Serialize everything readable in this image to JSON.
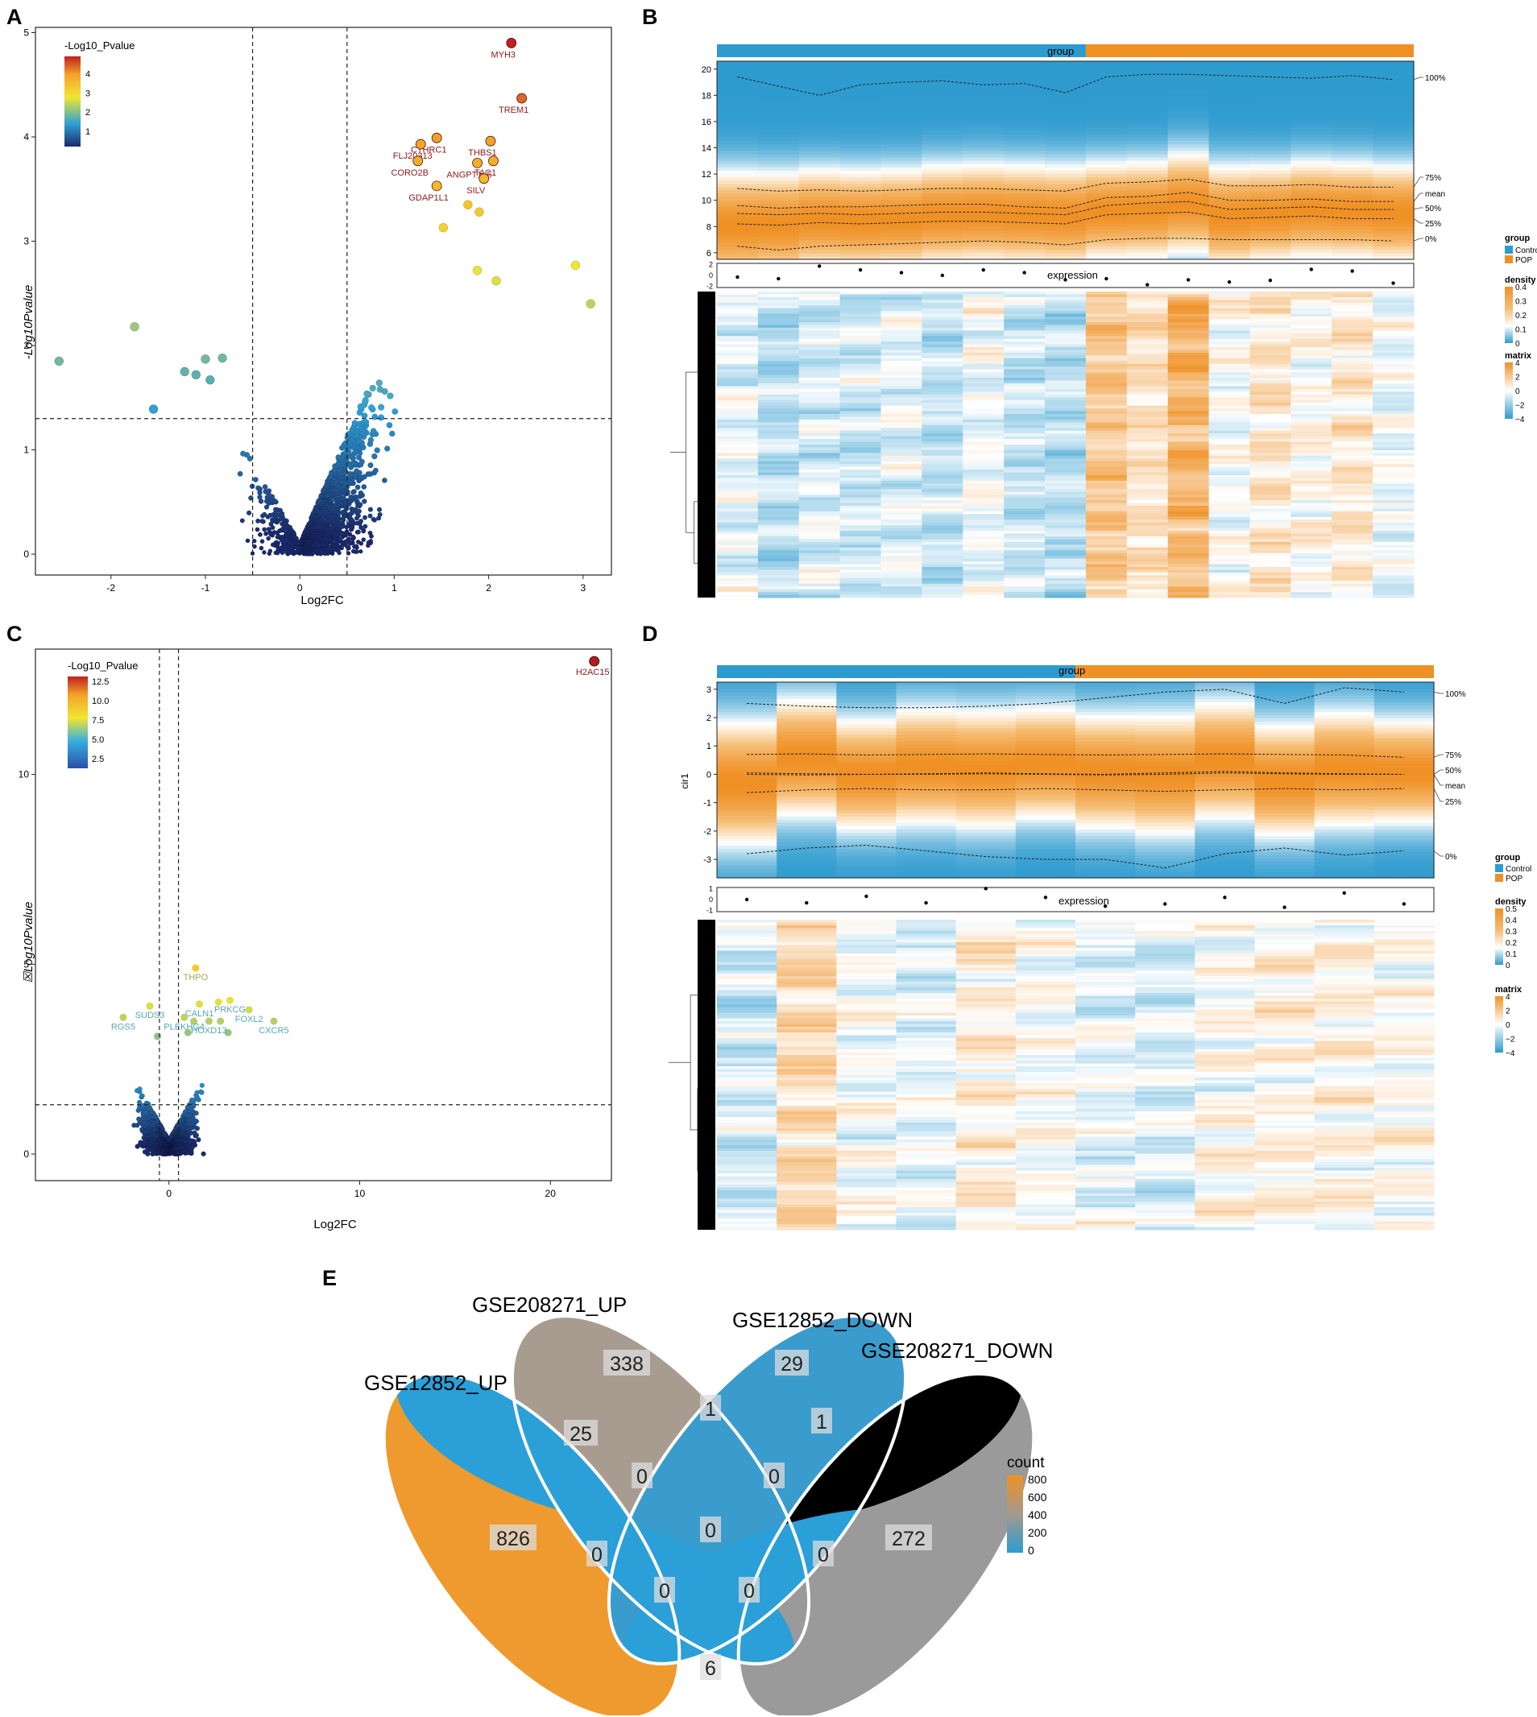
{
  "figure": {
    "panel_labels": [
      "A",
      "B",
      "C",
      "D",
      "E"
    ]
  },
  "chart_data": [
    {
      "panel": "A",
      "type": "scatter",
      "subtype": "volcano",
      "xlabel": "Log2FC",
      "ylabel": "-Log10Pvalue",
      "xlim": [
        -2.8,
        3.3
      ],
      "ylim": [
        -0.2,
        5.05
      ],
      "x_ticks": [
        -2,
        -1,
        0,
        1,
        2,
        3
      ],
      "y_ticks": [
        0,
        1,
        2,
        3,
        4,
        5
      ],
      "threshold_x": [
        -0.5,
        0.5
      ],
      "threshold_y": 1.3,
      "legend": {
        "title": "-Log10_Pvalue",
        "ticks": [
          1,
          2,
          3,
          4
        ],
        "range": [
          0.2,
          4.9
        ]
      },
      "labels": [
        {
          "text": "MYH3",
          "x": 2.24,
          "y": 4.9
        },
        {
          "text": "TREM1",
          "x": 2.35,
          "y": 4.37
        },
        {
          "text": "CTHRC1",
          "x": 1.45,
          "y": 3.99
        },
        {
          "text": "THBS1",
          "x": 2.02,
          "y": 3.96
        },
        {
          "text": "FLJ20313",
          "x": 1.28,
          "y": 3.93
        },
        {
          "text": "TAC1",
          "x": 2.05,
          "y": 3.77
        },
        {
          "text": "CORO2B",
          "x": 1.25,
          "y": 3.77
        },
        {
          "text": "ANGPT1L5",
          "x": 1.88,
          "y": 3.75
        },
        {
          "text": "GDAP1L1",
          "x": 1.45,
          "y": 3.53
        },
        {
          "text": "SILV",
          "x": 1.95,
          "y": 3.6
        }
      ],
      "extra_points": [
        {
          "x": -2.55,
          "y": 1.85
        },
        {
          "x": -1.75,
          "y": 2.18
        },
        {
          "x": -1.55,
          "y": 1.39
        },
        {
          "x": 2.92,
          "y": 2.77
        },
        {
          "x": 3.08,
          "y": 2.4
        },
        {
          "x": 2.08,
          "y": 2.62
        },
        {
          "x": 1.88,
          "y": 2.72
        },
        {
          "x": 1.52,
          "y": 3.13
        },
        {
          "x": 1.78,
          "y": 3.35
        },
        {
          "x": 1.9,
          "y": 3.28
        },
        {
          "x": -1.0,
          "y": 1.87
        },
        {
          "x": -0.82,
          "y": 1.88
        },
        {
          "x": -1.22,
          "y": 1.75
        },
        {
          "x": -1.1,
          "y": 1.72
        },
        {
          "x": -0.95,
          "y": 1.67
        }
      ]
    },
    {
      "panel": "B",
      "type": "heatmap",
      "top_annotation": "group",
      "group_split": [
        9,
        8
      ],
      "density_y_ticks": [
        6,
        8,
        10,
        12,
        14,
        16,
        18,
        20
      ],
      "density_ylim": [
        5.5,
        20.6
      ],
      "quantile_labels": [
        "100%",
        "75%",
        "mean",
        "50%",
        "25%",
        "0%"
      ],
      "quantiles": {
        "q100": [
          19.4,
          18.7,
          18.0,
          18.8,
          19.0,
          19.1,
          18.8,
          18.9,
          18.2,
          19.4,
          19.6,
          19.6,
          19.5,
          19.4,
          19.3,
          19.5,
          19.2
        ],
        "q75": [
          10.9,
          10.7,
          10.8,
          10.7,
          10.8,
          10.9,
          10.9,
          10.8,
          10.7,
          11.3,
          11.4,
          11.6,
          11.1,
          11.1,
          11.2,
          11.0,
          11.0
        ],
        "mean": [
          9.6,
          9.4,
          9.5,
          9.5,
          9.6,
          9.7,
          9.7,
          9.5,
          9.4,
          10.2,
          10.3,
          10.6,
          10.0,
          10.0,
          10.1,
          9.9,
          9.9
        ],
        "q50": [
          9.0,
          8.9,
          9.0,
          8.9,
          9.0,
          9.1,
          9.1,
          9.0,
          8.9,
          9.6,
          9.8,
          9.9,
          9.3,
          9.4,
          9.5,
          9.3,
          9.3
        ],
        "q25": [
          8.2,
          8.1,
          8.3,
          8.2,
          8.3,
          8.4,
          8.4,
          8.3,
          8.2,
          8.9,
          9.0,
          9.1,
          8.6,
          8.7,
          8.8,
          8.6,
          8.6
        ],
        "q0": [
          6.5,
          6.2,
          6.5,
          6.6,
          6.7,
          6.8,
          6.9,
          6.8,
          6.6,
          7.0,
          7.1,
          7.1,
          7.0,
          7.0,
          7.0,
          7.0,
          6.9
        ]
      },
      "mode": [
        8.1,
        8.2,
        8.6,
        8.5,
        8.6,
        8.9,
        9.0,
        8.9,
        8.8,
        9.2,
        9.3,
        9.8,
        8.8,
        9.0,
        9.3,
        9.2,
        9.0
      ],
      "expression_label": "expression",
      "expression_ticks": [
        2,
        0,
        -2
      ],
      "expression_values": [
        -0.3,
        -0.6,
        1.7,
        1.0,
        0.5,
        0.0,
        1.0,
        0.5,
        -0.8,
        -0.6,
        -1.7,
        -0.8,
        -1.2,
        -0.9,
        1.1,
        0.8,
        -1.4
      ],
      "legends": {
        "group": {
          "title": "group",
          "entries": [
            "Control",
            "POP"
          ]
        },
        "density": {
          "title": "density",
          "ticks": [
            "0.4",
            "0.3",
            "0.2",
            "0.1",
            "0"
          ]
        },
        "matrix": {
          "title": "matrix",
          "ticks": [
            "4",
            "2",
            "0",
            "−2",
            "−4"
          ]
        }
      }
    },
    {
      "panel": "C",
      "type": "scatter",
      "subtype": "volcano",
      "xlabel": "Log2FC",
      "ylabel": "☒Log10Pvalue",
      "xlim": [
        -7.0,
        23.2
      ],
      "ylim": [
        -0.7,
        13.3
      ],
      "x_ticks": [
        0,
        10,
        20
      ],
      "y_ticks": [
        0,
        5,
        10
      ],
      "threshold_x": [
        -0.5,
        0.5
      ],
      "threshold_y": 1.3,
      "legend": {
        "title": "-Log10_Pvalue",
        "ticks": [
          "12.5",
          "10.0",
          "7.5",
          "5.0",
          "2.5"
        ],
        "range": [
          0.3,
          13.0
        ]
      },
      "labels": [
        {
          "text": "H2AC15",
          "x": 22.3,
          "y": 12.98
        },
        {
          "text": "THPO",
          "x": 1.4,
          "y": 4.9
        },
        {
          "text": "SUDS3",
          "x": -1.0,
          "y": 3.9
        },
        {
          "text": "CALN1",
          "x": 1.6,
          "y": 3.95
        },
        {
          "text": "PRKCG",
          "x": 3.2,
          "y": 4.05
        },
        {
          "text": "PLEKHG4",
          "x": 0.8,
          "y": 3.6
        },
        {
          "text": "FOXL2",
          "x": 4.2,
          "y": 3.8
        },
        {
          "text": "RGS5",
          "x": -2.4,
          "y": 3.6
        },
        {
          "text": "HOXD13",
          "x": 2.1,
          "y": 3.5
        },
        {
          "text": "CXCR5",
          "x": 5.5,
          "y": 3.5
        }
      ],
      "extra_points": [
        {
          "x": 2.6,
          "y": 4.0
        },
        {
          "x": 2.7,
          "y": 3.5
        },
        {
          "x": 1.3,
          "y": 3.5
        },
        {
          "x": -0.6,
          "y": 3.1
        },
        {
          "x": 3.1,
          "y": 3.2
        },
        {
          "x": 1.0,
          "y": 3.2
        }
      ]
    },
    {
      "panel": "D",
      "type": "heatmap",
      "top_annotation": "group",
      "group_split": [
        6,
        6
      ],
      "density_ylabel": "cir1",
      "density_y_ticks": [
        -3,
        -2,
        -1,
        0,
        1,
        2,
        3
      ],
      "density_ylim": [
        -3.65,
        3.25
      ],
      "quantile_labels": [
        "100%",
        "75%",
        "50%",
        "mean",
        "25%",
        "0%"
      ],
      "quantiles": {
        "q100": [
          2.5,
          2.4,
          2.35,
          2.35,
          2.4,
          2.5,
          2.7,
          2.9,
          3.0,
          2.5,
          3.05,
          2.9
        ],
        "q75": [
          0.7,
          0.72,
          0.68,
          0.7,
          0.72,
          0.7,
          0.68,
          0.7,
          0.72,
          0.7,
          0.68,
          0.6
        ],
        "q50": [
          0.05,
          0.02,
          0.0,
          0.02,
          0.05,
          0.02,
          0.0,
          0.05,
          0.1,
          0.05,
          0.02,
          0.0
        ],
        "mean": [
          0.0,
          -0.02,
          0.0,
          0.0,
          0.02,
          0.0,
          -0.02,
          0.0,
          0.05,
          0.02,
          0.0,
          0.0
        ],
        "q25": [
          -0.65,
          -0.55,
          -0.5,
          -0.55,
          -0.55,
          -0.5,
          -0.55,
          -0.6,
          -0.55,
          -0.5,
          -0.55,
          -0.5
        ],
        "q0": [
          -2.8,
          -2.6,
          -2.5,
          -2.7,
          -2.9,
          -3.0,
          -3.0,
          -3.3,
          -2.8,
          -2.6,
          -2.85,
          -2.7
        ]
      },
      "mode": [
        -0.3,
        0.6,
        0.0,
        0.3,
        0.2,
        0.4,
        0.1,
        0.0,
        0.5,
        -0.2,
        0.2,
        0.1
      ],
      "expression_label": "expression",
      "expression_ticks": [
        1,
        0,
        -1
      ],
      "expression_values": [
        0.0,
        -0.3,
        0.3,
        -0.3,
        1.0,
        0.2,
        -0.6,
        -0.4,
        0.2,
        -0.7,
        0.6,
        -0.4
      ],
      "legends": {
        "group": {
          "title": "group",
          "entries": [
            "Control",
            "POP"
          ]
        },
        "density": {
          "title": "density",
          "ticks": [
            "0.5",
            "0.4",
            "0.3",
            "0.2",
            "0.1",
            "0"
          ]
        },
        "matrix": {
          "title": "matrix",
          "ticks": [
            "4",
            "2",
            "0",
            "−2",
            "−4"
          ]
        }
      }
    },
    {
      "panel": "E",
      "type": "venn",
      "sets": [
        "GSE12852_UP",
        "GSE208271_UP",
        "GSE12852_DOWN",
        "GSE208271_DOWN"
      ],
      "regions": [
        {
          "id": "A_only",
          "label": "826"
        },
        {
          "id": "B_only",
          "label": "338"
        },
        {
          "id": "C_only",
          "label": "29"
        },
        {
          "id": "D_only",
          "label": "272"
        },
        {
          "id": "AB",
          "label": "25"
        },
        {
          "id": "BC",
          "label": "1"
        },
        {
          "id": "CD",
          "label": "1"
        },
        {
          "id": "ABC",
          "label": "0"
        },
        {
          "id": "BCD",
          "label": "0"
        },
        {
          "id": "ABCD",
          "label": "0"
        },
        {
          "id": "AC",
          "label": "0"
        },
        {
          "id": "BD",
          "label": "0"
        },
        {
          "id": "ACD",
          "label": "0"
        },
        {
          "id": "ABD",
          "label": "0"
        },
        {
          "id": "AD",
          "label": "6"
        }
      ],
      "legend": {
        "title": "count",
        "ticks": [
          "800",
          "600",
          "400",
          "200",
          "0"
        ]
      }
    }
  ]
}
